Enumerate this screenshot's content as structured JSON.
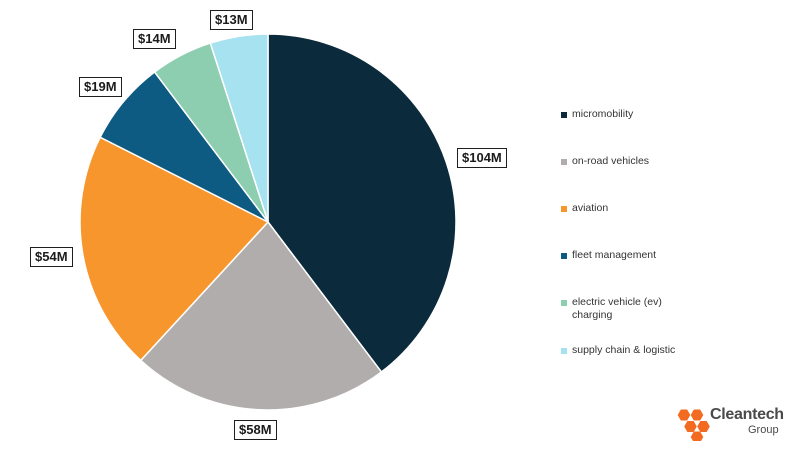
{
  "chart_data": {
    "type": "pie",
    "categories": [
      "micromobility",
      "on-road vehicles",
      "aviation",
      "fleet management",
      "electric vehicle (ev) charging",
      "supply chain & logistic"
    ],
    "values": [
      104,
      58,
      54,
      19,
      14,
      13
    ],
    "value_labels": [
      "$104M",
      "$58M",
      "$54M",
      "$19M",
      "$14M",
      "$13M"
    ],
    "colors": [
      "#0b2a3b",
      "#b1adac",
      "#f7962d",
      "#0d5b82",
      "#8dcdb0",
      "#a6e2ef"
    ],
    "legend": {
      "placement": "right",
      "entries": [
        {
          "label": "micromobility",
          "color": "#0b2a3b"
        },
        {
          "label": "on-road vehicles",
          "color": "#b1adac"
        },
        {
          "label": "aviation",
          "color": "#f7962d"
        },
        {
          "label": "fleet management",
          "color": "#0d5b82"
        },
        {
          "label": "electric vehicle (ev)\ncharging",
          "color": "#8dcdb0"
        },
        {
          "label": "supply chain & logistic",
          "color": "#a6e2ef"
        }
      ]
    },
    "start_angle": "12 o'clock",
    "direction": "clockwise"
  },
  "logo": {
    "name": "Cleantech",
    "sub": "Group",
    "icon": "hexagon-cluster-icon",
    "color": "#f26b21"
  }
}
